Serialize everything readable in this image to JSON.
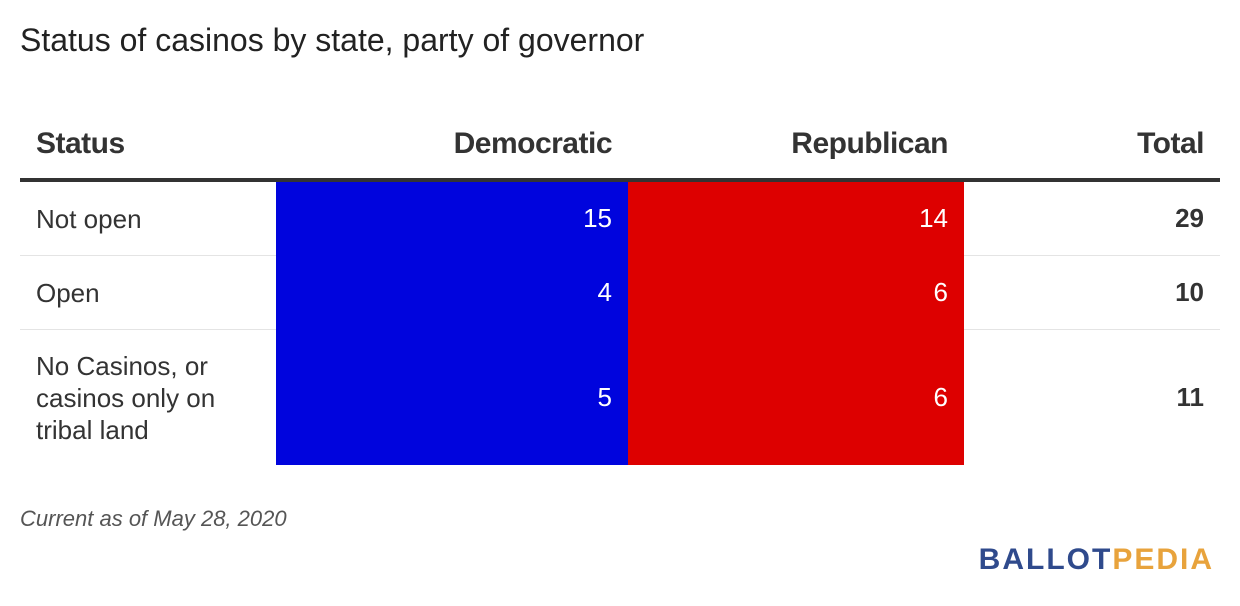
{
  "title": "Status of casinos by state, party of governor",
  "colors": {
    "democratic": "#0004dd",
    "republican": "#dd0000",
    "logo_primary": "#2f4a8c",
    "logo_accent": "#e8a33c"
  },
  "chart_data": {
    "type": "table",
    "title": "Status of casinos by state, party of governor",
    "columns": [
      "Status",
      "Democratic",
      "Republican",
      "Total"
    ],
    "rows": [
      {
        "status": "Not open",
        "democratic": 15,
        "republican": 14,
        "total": 29
      },
      {
        "status": "Open",
        "democratic": 4,
        "republican": 6,
        "total": 10
      },
      {
        "status": "No Casinos, or casinos only on tribal land",
        "democratic": 5,
        "republican": 6,
        "total": 11
      }
    ]
  },
  "note": "Current as of May 28, 2020",
  "logo": {
    "part1": "BALLOT",
    "part2": "PEDIA"
  }
}
